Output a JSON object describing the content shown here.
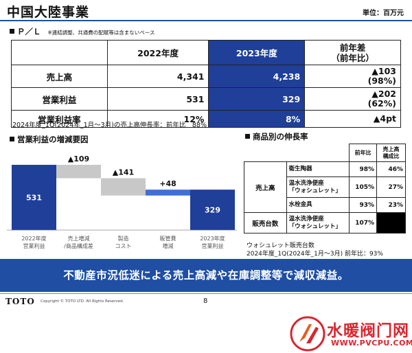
{
  "header": {
    "title": "中国大陸事業",
    "unit": "単位：百万元"
  },
  "pl_section": {
    "heading": "Ｐ／Ｌ",
    "note": "※連結調整、共通費の配賦等は含まないベース",
    "columns": [
      "2022年度",
      "2023年度",
      "前年差\n（前年比）"
    ],
    "rows": [
      {
        "label": "売上高",
        "fy2022": "4,341",
        "fy2023": "4,238",
        "diff": "▲103",
        "ratio": "(98%)"
      },
      {
        "label": "営業利益",
        "fy2022": "531",
        "fy2023": "329",
        "diff": "▲202",
        "ratio": "(62%)"
      },
      {
        "label": "営業利益率",
        "fy2022": "12%",
        "fy2023": "8%",
        "diff": "▲4pt",
        "ratio": ""
      }
    ],
    "growth_note": "2024年度_1Q(2024年_1月～3月)の売上高伸長率：前年比　88%"
  },
  "waterfall_section": {
    "heading": "営業利益の増減要因",
    "chart_data": {
      "type": "waterfall",
      "unit": "百万元",
      "categories": [
        "2022年度\n営業利益",
        "売上増減\n/商品構成差",
        "製造\nコスト",
        "販管費\n増減",
        "2023年度\n営業利益"
      ],
      "values": [
        531,
        -109,
        -141,
        48,
        329
      ],
      "value_labels": [
        "531",
        "▲109",
        "▲141",
        "+48",
        "329"
      ],
      "kinds": [
        "total",
        "delta",
        "delta",
        "delta",
        "total"
      ],
      "colors": {
        "total": "#1f3f99",
        "negative": "#c8c8c8",
        "positive": "#3d6fd6"
      },
      "ylim": [
        0,
        531
      ]
    }
  },
  "product_section": {
    "heading": "商品別の伸長率",
    "col_headers": [
      "前年比",
      "売上高\n構成比"
    ],
    "sales_label": "売上高",
    "sales_rows": [
      {
        "name": "衛生陶器",
        "yoy": "98%",
        "share": "46%"
      },
      {
        "name": "温水洗浄便座\n「ウォシュレット」",
        "yoy": "105%",
        "share": "27%"
      },
      {
        "name": "水栓金具",
        "yoy": "93%",
        "share": "23%"
      }
    ],
    "units_label": "販売台数",
    "units_row": {
      "name": "温水洗浄便座\n「ウォシュレット」",
      "yoy": "107%"
    },
    "note_line1": "ウォシュレット販売台数",
    "note_line2": "2024年度_1Q(2024年_1月～3月) 前年比：93%"
  },
  "banner": "不動産市況低迷による売上高減や在庫調整等で減収減益。",
  "footer": {
    "logo": "TOTO",
    "copyright": "Copyright © TOTO LTD. All Rights Reserved.",
    "page": "8"
  },
  "watermark": {
    "title": "水暖阀门网",
    "url": "WWW.PVCPU.COM"
  }
}
